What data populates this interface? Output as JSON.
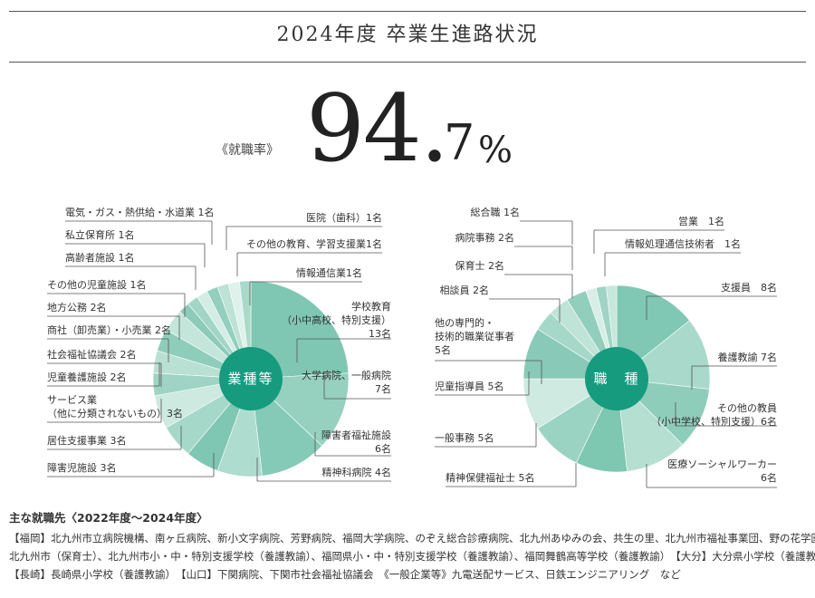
{
  "title": "2024年度 卒業生進路状況",
  "employment_rate": {
    "label": "《就職率》",
    "integer": "94.",
    "decimal": "7",
    "unit": "%",
    "value": 94.7
  },
  "chart_data": [
    {
      "type": "pie",
      "center_label": "業種等",
      "slices": [
        {
          "label": "学校教育（小中高校、特別支援）13名",
          "value": 13,
          "color": "#7fc7b2"
        },
        {
          "label": "大学病院、一般病院 7名",
          "value": 7,
          "color": "#96d1bf"
        },
        {
          "label": "障害者福祉施設 6名",
          "value": 6,
          "color": "#85caB6"
        },
        {
          "label": "精神科病院 4名",
          "value": 4,
          "color": "#aedcce"
        },
        {
          "label": "障害児施設 3名",
          "value": 3,
          "color": "#7fc7b2"
        },
        {
          "label": "居住支援事業 3名",
          "value": 3,
          "color": "#a6d8c9"
        },
        {
          "label": "サービス業（他に分類されないもの）3名",
          "value": 3,
          "color": "#cde9e0"
        },
        {
          "label": "児童養護施設 2名",
          "value": 2,
          "color": "#9fd4c4"
        },
        {
          "label": "社会福祉協議会 2名",
          "value": 2,
          "color": "#b8e0d3"
        },
        {
          "label": "商社（卸売業）・小売業 2名",
          "value": 2,
          "color": "#8fcdbb"
        },
        {
          "label": "地方公務 2名",
          "value": 2,
          "color": "#c3e5da"
        },
        {
          "label": "その他の児童施設 1名",
          "value": 1,
          "color": "#8ccbb8"
        },
        {
          "label": "高齢者施設 1名",
          "value": 1,
          "color": "#a2d5c6"
        },
        {
          "label": "私立保育所 1名",
          "value": 1,
          "color": "#d3ece4"
        },
        {
          "label": "電気・ガス・熱供給・水道業 1名",
          "value": 1,
          "color": "#93cfbd"
        },
        {
          "label": "医院（歯科）1名",
          "value": 1,
          "color": "#bde2d6"
        },
        {
          "label": "その他の教育、学習支援業1名",
          "value": 1,
          "color": "#dff1eb"
        },
        {
          "label": "情報通信業1名",
          "value": 1,
          "color": "#a9d9ca"
        }
      ]
    },
    {
      "type": "pie",
      "center_label": "職　種",
      "slices": [
        {
          "label": "支援員 8名",
          "value": 8,
          "color": "#80c8b3"
        },
        {
          "label": "養護教諭 7名",
          "value": 7,
          "color": "#a9d9ca"
        },
        {
          "label": "その他の教員（小中学校、特別支援）6名",
          "value": 6,
          "color": "#8fcdbb"
        },
        {
          "label": "医療ソーシャルワーカー 6名",
          "value": 6,
          "color": "#b5dfd1"
        },
        {
          "label": "精神保健福祉士 5名",
          "value": 5,
          "color": "#7ec7b1"
        },
        {
          "label": "一般事務 5名",
          "value": 5,
          "color": "#9bd3c2"
        },
        {
          "label": "児童指導員 5名",
          "value": 5,
          "color": "#cfeae1"
        },
        {
          "label": "他の専門的・技術的職業従事者 5名",
          "value": 5,
          "color": "#88cab7"
        },
        {
          "label": "相談員 2名",
          "value": 2,
          "color": "#a6d8c9"
        },
        {
          "label": "保育士 2名",
          "value": 2,
          "color": "#bfe3d7"
        },
        {
          "label": "病院事務 2名",
          "value": 2,
          "color": "#92cebc"
        },
        {
          "label": "総合職 1名",
          "value": 1,
          "color": "#d7eee6"
        },
        {
          "label": "営業 1名",
          "value": 1,
          "color": "#9fd4c4"
        },
        {
          "label": "情報処理通信技術者 1名",
          "value": 1,
          "color": "#c6e7dc"
        }
      ]
    }
  ],
  "left_labels": [
    [
      "電気・ガス・熱供給・水道業 1名"
    ],
    [
      "私立保育所 1名"
    ],
    [
      "高齢者施設 1名"
    ],
    [
      "その他の児童施設 1名"
    ],
    [
      "地方公務 2名"
    ],
    [
      "商社（卸売業）・小売業 2名"
    ],
    [
      "社会福祉協議会 2名"
    ],
    [
      "児童養護施設 2名"
    ],
    [
      "サービス業",
      "（他に分類されないもの）3名"
    ],
    [
      "居住支援事業 3名"
    ],
    [
      "障害児施設 3名"
    ],
    [
      "医院（歯科）1名"
    ],
    [
      "その他の教育、学習支援業1名"
    ],
    [
      "情報通信業1名"
    ],
    [
      "学校教育",
      "（小中高校、特別支援）",
      "13名"
    ],
    [
      "大学病院、一般病院",
      "7名"
    ],
    [
      "障害者福祉施設",
      "6名"
    ],
    [
      "精神科病院 4名"
    ]
  ],
  "right_labels": [
    [
      "総合職 1名"
    ],
    [
      "病院事務 2名"
    ],
    [
      "保育士 2名"
    ],
    [
      "相談員 2名"
    ],
    [
      "他の専門的・",
      "技術的職業従事者",
      "5名"
    ],
    [
      "児童指導員 5名"
    ],
    [
      "一般事務 5名"
    ],
    [
      "精神保健福祉士 5名"
    ],
    [
      "営業　1名"
    ],
    [
      "情報処理通信技術者　1名"
    ],
    [
      "支援員　8名"
    ],
    [
      "養護教諭 7名"
    ],
    [
      "その他の教員",
      "（小中学校、特別支援）6名"
    ],
    [
      "医療ソーシャルワーカー",
      "6名"
    ]
  ],
  "footer": {
    "title": "主な就職先〈2022年度～2024年度〉",
    "lines": [
      "【福岡】北九州市立病院機構、南ヶ丘病院、新小文字病院、芳野病院、福岡大学病院、のぞえ総合診療病院、北九州あゆみの会、共生の里、北九州市福祉事業団、野の花学園、",
      "北九州市（保育士）、北九州市小・中・特別支援学校（養護教諭）、福岡県小・中・特別支援学校（養護教諭）、福岡舞鶴高等学校（養護教諭）　【大分】大分県小学校（養護教諭）",
      "【長崎】長崎県小学校（養護教諭）　【山口】下関病院、下関市社会福祉協議会　《一般企業等》九電送配サービス、日鉄エンジニアリング　など"
    ]
  },
  "colors": {
    "center": "#169b7f",
    "leader": "#555555"
  }
}
